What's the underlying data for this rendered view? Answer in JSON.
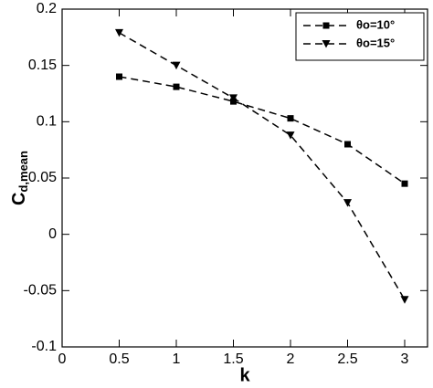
{
  "chart_data": {
    "type": "line",
    "xlabel": "k",
    "ylabel": "C",
    "ylabel_sub": "d,mean",
    "x": [
      0.5,
      1,
      1.5,
      2,
      2.5,
      3
    ],
    "series": [
      {
        "name": "θo=10°",
        "color": "#000000",
        "marker": "square",
        "values": [
          0.14,
          0.131,
          0.118,
          0.103,
          0.08,
          0.045
        ]
      },
      {
        "name": "θo=15°",
        "color": "#000000",
        "marker": "triangle-down",
        "values": [
          0.179,
          0.15,
          0.121,
          0.088,
          0.028,
          -0.058
        ]
      }
    ],
    "xlim": [
      0,
      3.2
    ],
    "xticks": [
      0,
      0.5,
      1,
      1.5,
      2,
      2.5,
      3
    ],
    "ylim": [
      -0.1,
      0.2
    ],
    "yticks": [
      -0.1,
      -0.05,
      0,
      0.05,
      0.1,
      0.15,
      0.2
    ],
    "grid": false,
    "legend": "upper right",
    "line_style": "dashed"
  }
}
